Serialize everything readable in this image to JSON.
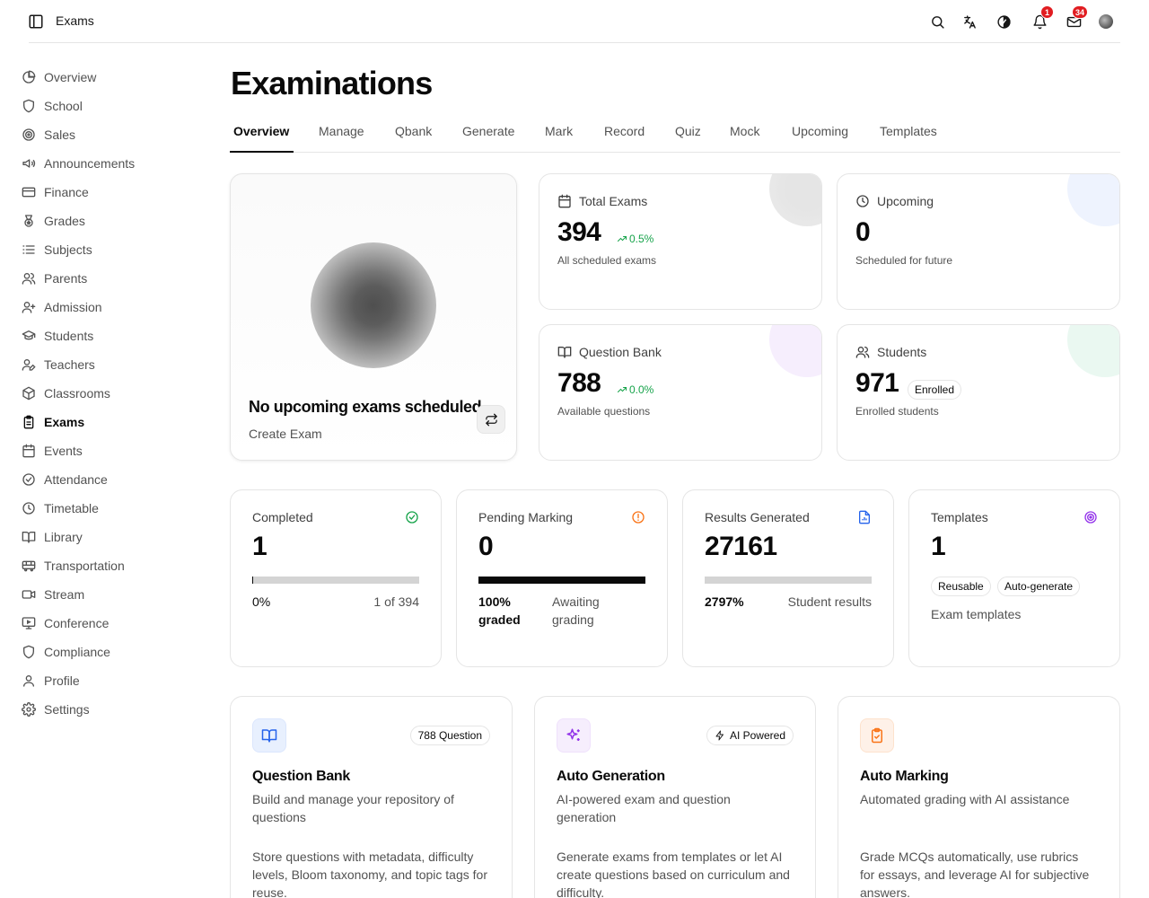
{
  "header": {
    "breadcrumb": "Exams",
    "notifications_count": "1",
    "messages_count": "34"
  },
  "sidebar": {
    "items": [
      {
        "label": "Overview",
        "icon": "pie-chart-icon"
      },
      {
        "label": "School",
        "icon": "shield-icon"
      },
      {
        "label": "Sales",
        "icon": "target-icon"
      },
      {
        "label": "Announcements",
        "icon": "megaphone-icon"
      },
      {
        "label": "Finance",
        "icon": "card-icon"
      },
      {
        "label": "Grades",
        "icon": "medal-icon"
      },
      {
        "label": "Subjects",
        "icon": "list-icon"
      },
      {
        "label": "Parents",
        "icon": "users-icon"
      },
      {
        "label": "Admission",
        "icon": "user-plus-icon"
      },
      {
        "label": "Students",
        "icon": "graduation-cap-icon"
      },
      {
        "label": "Teachers",
        "icon": "user-pen-icon"
      },
      {
        "label": "Classrooms",
        "icon": "box-icon"
      },
      {
        "label": "Exams",
        "icon": "clipboard-icon"
      },
      {
        "label": "Events",
        "icon": "calendar-icon"
      },
      {
        "label": "Attendance",
        "icon": "check-circle-icon"
      },
      {
        "label": "Timetable",
        "icon": "clock-icon"
      },
      {
        "label": "Library",
        "icon": "book-icon"
      },
      {
        "label": "Transportation",
        "icon": "bus-icon"
      },
      {
        "label": "Stream",
        "icon": "video-icon"
      },
      {
        "label": "Conference",
        "icon": "presentation-icon"
      },
      {
        "label": "Compliance",
        "icon": "shield-icon"
      },
      {
        "label": "Profile",
        "icon": "user-icon"
      },
      {
        "label": "Settings",
        "icon": "gear-icon"
      }
    ],
    "active": "Exams"
  },
  "page": {
    "title": "Examinations",
    "tabs": [
      "Overview",
      "Manage",
      "Qbank",
      "Generate",
      "Mark",
      "Record",
      "Quiz",
      "Mock",
      "Upcoming",
      "Templates"
    ],
    "active_tab": "Overview"
  },
  "hero": {
    "title": "No upcoming exams scheduled",
    "subtitle": "Create Exam"
  },
  "stats": {
    "total_exams": {
      "label": "Total Exams",
      "value": "394",
      "trend": "0.5%",
      "sub": "All scheduled exams"
    },
    "upcoming": {
      "label": "Upcoming",
      "value": "0",
      "sub": "Scheduled for future"
    },
    "question_bank": {
      "label": "Question Bank",
      "value": "788",
      "trend": "0.0%",
      "sub": "Available questions"
    },
    "students": {
      "label": "Students",
      "value": "971",
      "pill": "Enrolled",
      "sub": "Enrolled students"
    }
  },
  "progress": {
    "completed": {
      "label": "Completed",
      "value": "1",
      "fill": 0.0025,
      "left": "0%",
      "right": "1 of 394"
    },
    "pending": {
      "label": "Pending Marking",
      "value": "0",
      "fill": 1.0,
      "left": "100% graded",
      "right": "Awaiting grading"
    },
    "results": {
      "label": "Results Generated",
      "value": "27161",
      "fill": 0.0,
      "left": "2797%",
      "right": "Student results"
    },
    "templates": {
      "label": "Templates",
      "value": "1",
      "pills": [
        "Reusable",
        "Auto-generate"
      ],
      "sub": "Exam templates"
    }
  },
  "features": {
    "question_bank": {
      "badge": "788 Question",
      "title": "Question Bank",
      "desc": "Build and manage your repository of questions",
      "body": "Store questions with metadata, difficulty levels, Bloom taxonomy, and topic tags for reuse."
    },
    "auto_generation": {
      "badge": "AI Powered",
      "title": "Auto Generation",
      "desc": "AI-powered exam and question generation",
      "body": "Generate exams from templates or let AI create questions based on curriculum and difficulty."
    },
    "auto_marking": {
      "title": "Auto Marking",
      "desc": "Automated grading with AI assistance",
      "body": "Grade MCQs automatically, use rubrics for essays, and leverage AI for subjective answers."
    }
  },
  "colors": {
    "success": "#16a34a",
    "warning": "#f97316",
    "info": "#2563eb",
    "purple": "#9333ea",
    "danger": "#e11d21"
  }
}
